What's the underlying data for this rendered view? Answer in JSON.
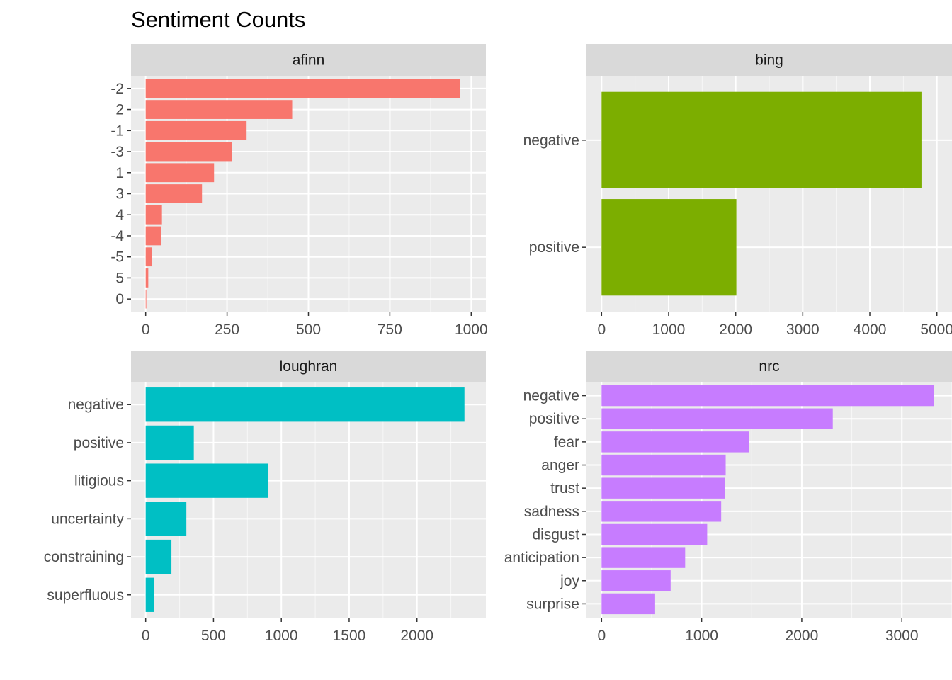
{
  "title": "Sentiment Counts",
  "chart_data": [
    {
      "type": "bar",
      "orientation": "horizontal",
      "panel": "afinn",
      "color": "#F8766D",
      "categories": [
        "-2",
        "2",
        "-1",
        "-3",
        "1",
        "3",
        "4",
        "-4",
        "-5",
        "5",
        "0"
      ],
      "values": [
        965,
        450,
        310,
        265,
        210,
        173,
        50,
        48,
        20,
        8,
        2
      ],
      "xlim": [
        0,
        1000
      ],
      "x_ticks": [
        0,
        250,
        500,
        750,
        1000
      ],
      "x_tick_labels": [
        "0",
        "250",
        "500",
        "750",
        "1000"
      ]
    },
    {
      "type": "bar",
      "orientation": "horizontal",
      "panel": "bing",
      "color": "#7CAE00",
      "categories": [
        "negative",
        "positive"
      ],
      "values": [
        4770,
        2010
      ],
      "xlim": [
        0,
        5000
      ],
      "x_ticks": [
        0,
        1000,
        2000,
        3000,
        4000,
        5000
      ],
      "x_tick_labels": [
        "0",
        "1000",
        "2000",
        "3000",
        "4000",
        "5000"
      ]
    },
    {
      "type": "bar",
      "orientation": "horizontal",
      "panel": "loughran",
      "color": "#00BFC4",
      "categories": [
        "negative",
        "positive",
        "litigious",
        "uncertainty",
        "constraining",
        "superfluous"
      ],
      "values": [
        2350,
        355,
        905,
        300,
        190,
        60
      ],
      "xlim": [
        0,
        2400
      ],
      "x_ticks": [
        0,
        500,
        1000,
        1500,
        2000
      ],
      "x_tick_labels": [
        "0",
        "500",
        "1000",
        "1500",
        "2000"
      ]
    },
    {
      "type": "bar",
      "orientation": "horizontal",
      "panel": "nrc",
      "color": "#C77CFF",
      "categories": [
        "negative",
        "positive",
        "fear",
        "anger",
        "trust",
        "sadness",
        "disgust",
        "anticipation",
        "joy",
        "surprise"
      ],
      "values": [
        3320,
        2310,
        1475,
        1240,
        1230,
        1195,
        1055,
        835,
        690,
        535
      ],
      "xlim": [
        0,
        3350
      ],
      "x_ticks": [
        0,
        1000,
        2000,
        3000
      ],
      "x_tick_labels": [
        "0",
        "1000",
        "2000",
        "3000"
      ]
    }
  ]
}
